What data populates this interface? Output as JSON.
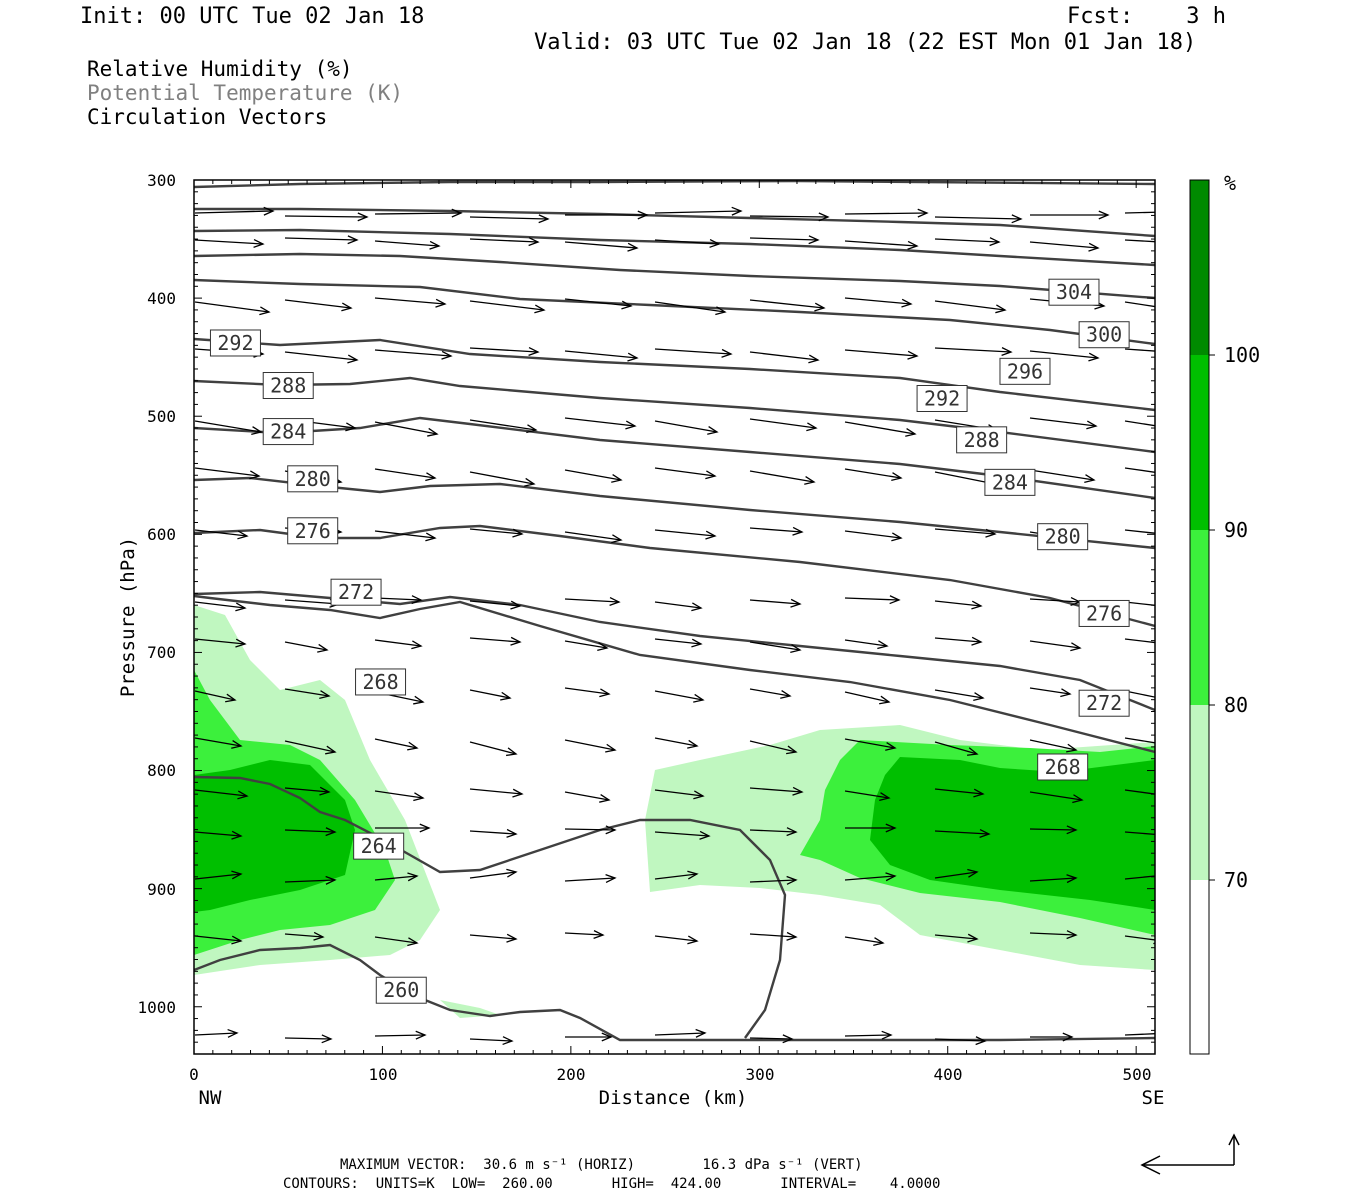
{
  "header": {
    "init": "Init: 00 UTC Tue 02 Jan 18",
    "fcst": "Fcst:    3 h",
    "valid": "Valid: 03 UTC Tue 02 Jan 18 (22 EST Mon 01 Jan 18)"
  },
  "fields": {
    "rh": "Relative Humidity (%)",
    "theta": "Potential Temperature (K)",
    "vectors": "Circulation Vectors"
  },
  "footer": {
    "max_vector": "MAXIMUM VECTOR:  30.6 m s⁻¹ (HORIZ)        16.3 dPa s⁻¹ (VERT)",
    "contours": "CONTOURS:  UNITS=K  LOW=  260.00       HIGH=  424.00       INTERVAL=    4.0000"
  },
  "colors": {
    "rh_70_80": "#c0f7c0",
    "rh_80_90": "#3cf03c",
    "rh_90_100": "#00bf00",
    "rh_100": "#008a00",
    "contour": "#404040"
  },
  "chart_data": {
    "type": "area",
    "xlabel": "Distance (km)",
    "ylabel": "Pressure (hPa)",
    "xlim": [
      0,
      510
    ],
    "ylim": [
      1040,
      300
    ],
    "x_ticks": [
      "0",
      "100",
      "200",
      "300",
      "400",
      "500"
    ],
    "y_ticks": [
      "300",
      "400",
      "500",
      "600",
      "700",
      "800",
      "900",
      "1000"
    ],
    "left_endpoint": "NW",
    "right_endpoint": "SE",
    "colorbar": {
      "unit": "%",
      "levels": [
        "70",
        "80",
        "90",
        "100"
      ]
    },
    "contour_labels": [
      {
        "value": "304",
        "x": 467,
        "p": 395
      },
      {
        "value": "300",
        "x": 483,
        "p": 431
      },
      {
        "value": "296",
        "x": 441,
        "p": 462
      },
      {
        "value": "292",
        "x": 397,
        "p": 485
      },
      {
        "value": "288",
        "x": 418,
        "p": 520
      },
      {
        "value": "284",
        "x": 433,
        "p": 556
      },
      {
        "value": "280",
        "x": 461,
        "p": 602
      },
      {
        "value": "276",
        "x": 483,
        "p": 667
      },
      {
        "value": "272",
        "x": 483,
        "p": 743
      },
      {
        "value": "268",
        "x": 461,
        "p": 797
      },
      {
        "value": "292",
        "x": 22,
        "p": 438
      },
      {
        "value": "288",
        "x": 50,
        "p": 474
      },
      {
        "value": "284",
        "x": 50,
        "p": 513
      },
      {
        "value": "280",
        "x": 63,
        "p": 553
      },
      {
        "value": "276",
        "x": 63,
        "p": 597
      },
      {
        "value": "272",
        "x": 86,
        "p": 649
      },
      {
        "value": "268",
        "x": 99,
        "p": 725
      },
      {
        "value": "264",
        "x": 98,
        "p": 864
      },
      {
        "value": "260",
        "x": 110,
        "p": 986
      }
    ]
  }
}
